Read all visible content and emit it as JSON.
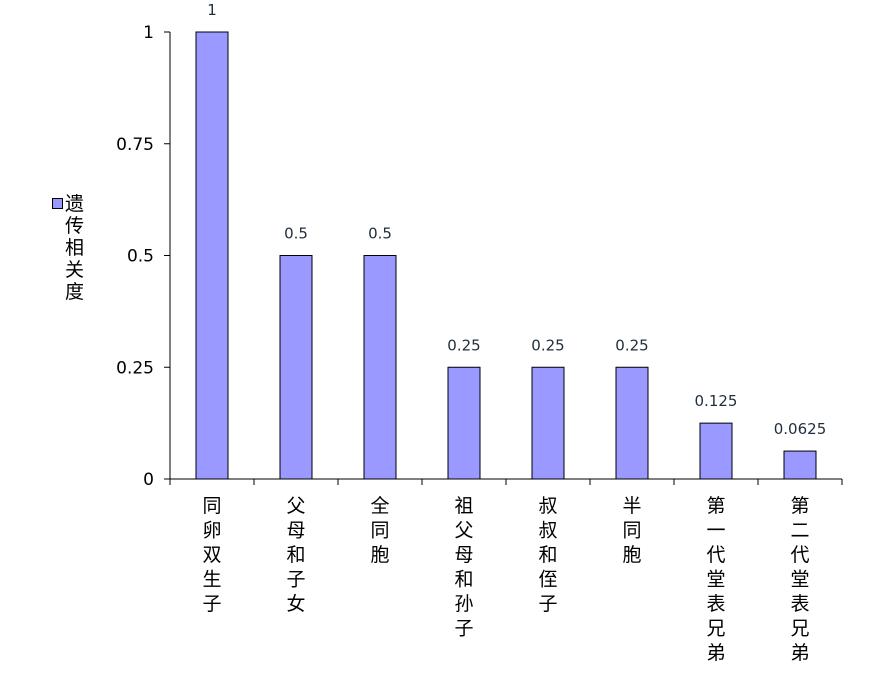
{
  "chart_data": {
    "type": "bar",
    "categories": [
      "同卵双生子",
      "父母和子女",
      "全同胞",
      "祖父母和孙子",
      "叔叔和侄子",
      "半同胞",
      "第一代堂表兄弟",
      "第二代堂表兄弟"
    ],
    "series": [
      {
        "name": "遗传相关度",
        "values": [
          1,
          0.5,
          0.5,
          0.25,
          0.25,
          0.25,
          0.125,
          0.0625
        ]
      }
    ],
    "data_labels": [
      "1",
      "0.5",
      "0.5",
      "0.25",
      "0.25",
      "0.25",
      "0.125",
      "0.0625"
    ],
    "y_ticks": [
      0,
      0.25,
      0.5,
      0.75,
      1
    ],
    "y_tick_labels": [
      "0",
      "0.25",
      "0.5",
      "0.75",
      "1"
    ],
    "ylim": [
      0,
      1
    ],
    "grid": false,
    "legend": "left",
    "bar_color": "#9999ff"
  }
}
